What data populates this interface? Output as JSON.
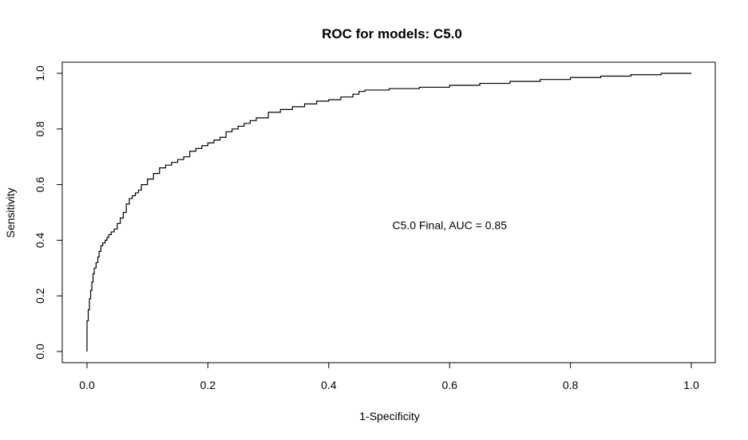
{
  "chart_data": {
    "type": "line",
    "title": "ROC for models: C5.0",
    "xlabel": "1-Specificity",
    "ylabel": "Sensitivity",
    "xlim": [
      0,
      1
    ],
    "ylim": [
      0,
      1
    ],
    "x_ticks": [
      "0.0",
      "0.2",
      "0.4",
      "0.6",
      "0.8",
      "1.0"
    ],
    "y_ticks": [
      "0.0",
      "0.2",
      "0.4",
      "0.6",
      "0.8",
      "1.0"
    ],
    "grid": false,
    "annotation": {
      "text": "C5.0 Final, AUC =  0.85",
      "x": 0.6,
      "y": 0.44
    },
    "series": [
      {
        "x": [
          0.0,
          0.0,
          0.002,
          0.004,
          0.006,
          0.008,
          0.01,
          0.012,
          0.015,
          0.018,
          0.02,
          0.023,
          0.026,
          0.03,
          0.033,
          0.036,
          0.04,
          0.045,
          0.05,
          0.055,
          0.06,
          0.065,
          0.07,
          0.075,
          0.08,
          0.085,
          0.09,
          0.1,
          0.11,
          0.12,
          0.13,
          0.14,
          0.15,
          0.16,
          0.17,
          0.18,
          0.19,
          0.2,
          0.21,
          0.22,
          0.23,
          0.24,
          0.25,
          0.26,
          0.27,
          0.28,
          0.3,
          0.32,
          0.34,
          0.36,
          0.38,
          0.4,
          0.42,
          0.44,
          0.45,
          0.46,
          0.5,
          0.55,
          0.6,
          0.65,
          0.7,
          0.75,
          0.8,
          0.85,
          0.9,
          0.95,
          1.0
        ],
        "y": [
          0.0,
          0.05,
          0.11,
          0.15,
          0.19,
          0.22,
          0.25,
          0.28,
          0.3,
          0.32,
          0.34,
          0.36,
          0.38,
          0.39,
          0.4,
          0.41,
          0.42,
          0.43,
          0.44,
          0.46,
          0.48,
          0.5,
          0.53,
          0.55,
          0.56,
          0.57,
          0.58,
          0.6,
          0.62,
          0.64,
          0.66,
          0.67,
          0.68,
          0.69,
          0.7,
          0.72,
          0.73,
          0.74,
          0.75,
          0.76,
          0.77,
          0.79,
          0.8,
          0.81,
          0.82,
          0.83,
          0.84,
          0.86,
          0.87,
          0.88,
          0.89,
          0.9,
          0.905,
          0.915,
          0.925,
          0.935,
          0.94,
          0.945,
          0.95,
          0.957,
          0.964,
          0.971,
          0.978,
          0.985,
          0.99,
          0.995,
          1.0
        ]
      }
    ]
  }
}
